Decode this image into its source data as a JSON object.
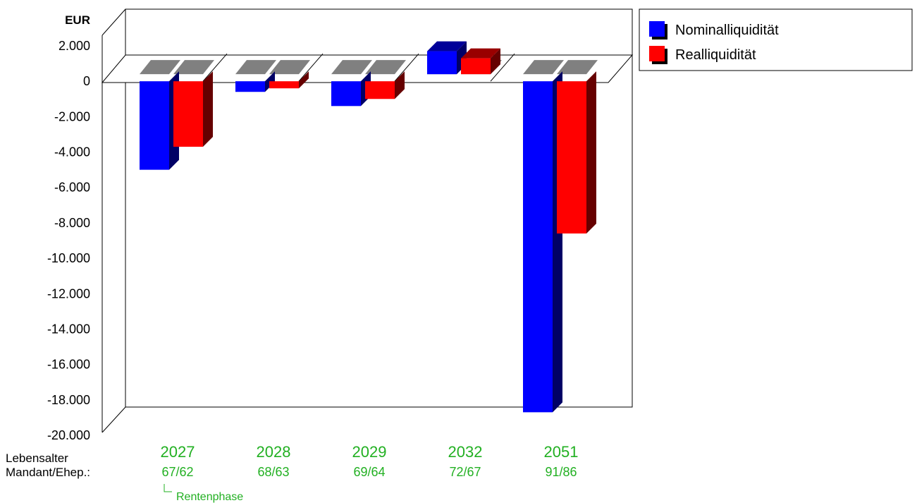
{
  "chart_data": {
    "type": "bar",
    "unit_label": "EUR",
    "categories": [
      "2027",
      "2028",
      "2029",
      "2032",
      "2051"
    ],
    "ages": [
      "67/62",
      "68/63",
      "69/64",
      "72/67",
      "91/86"
    ],
    "row_labels": [
      "Lebensalter",
      "Mandant/Ehep.:"
    ],
    "annotation": "Rentenphase",
    "series": [
      {
        "name": "Nominalliquidität",
        "values": [
          -5000,
          -600,
          -1400,
          1300,
          -18700
        ]
      },
      {
        "name": "Realliquidität",
        "values": [
          -3700,
          -400,
          -1000,
          900,
          -8600
        ]
      }
    ],
    "ylim": [
      -20000,
      2000
    ],
    "yticks": [
      "2.000",
      "0",
      "-2.000",
      "-4.000",
      "-6.000",
      "-8.000",
      "-10.000",
      "-12.000",
      "-14.000",
      "-16.000",
      "-18.000",
      "-20.000"
    ],
    "legend_position": "top-right",
    "grid": false,
    "colors": {
      "series_front": [
        "#0000ff",
        "#ff0000"
      ],
      "series_side": [
        "#000066",
        "#660000"
      ],
      "series_top": [
        "#000099",
        "#990000"
      ],
      "zero_cap": "#808080",
      "labels": "#22b022"
    }
  }
}
